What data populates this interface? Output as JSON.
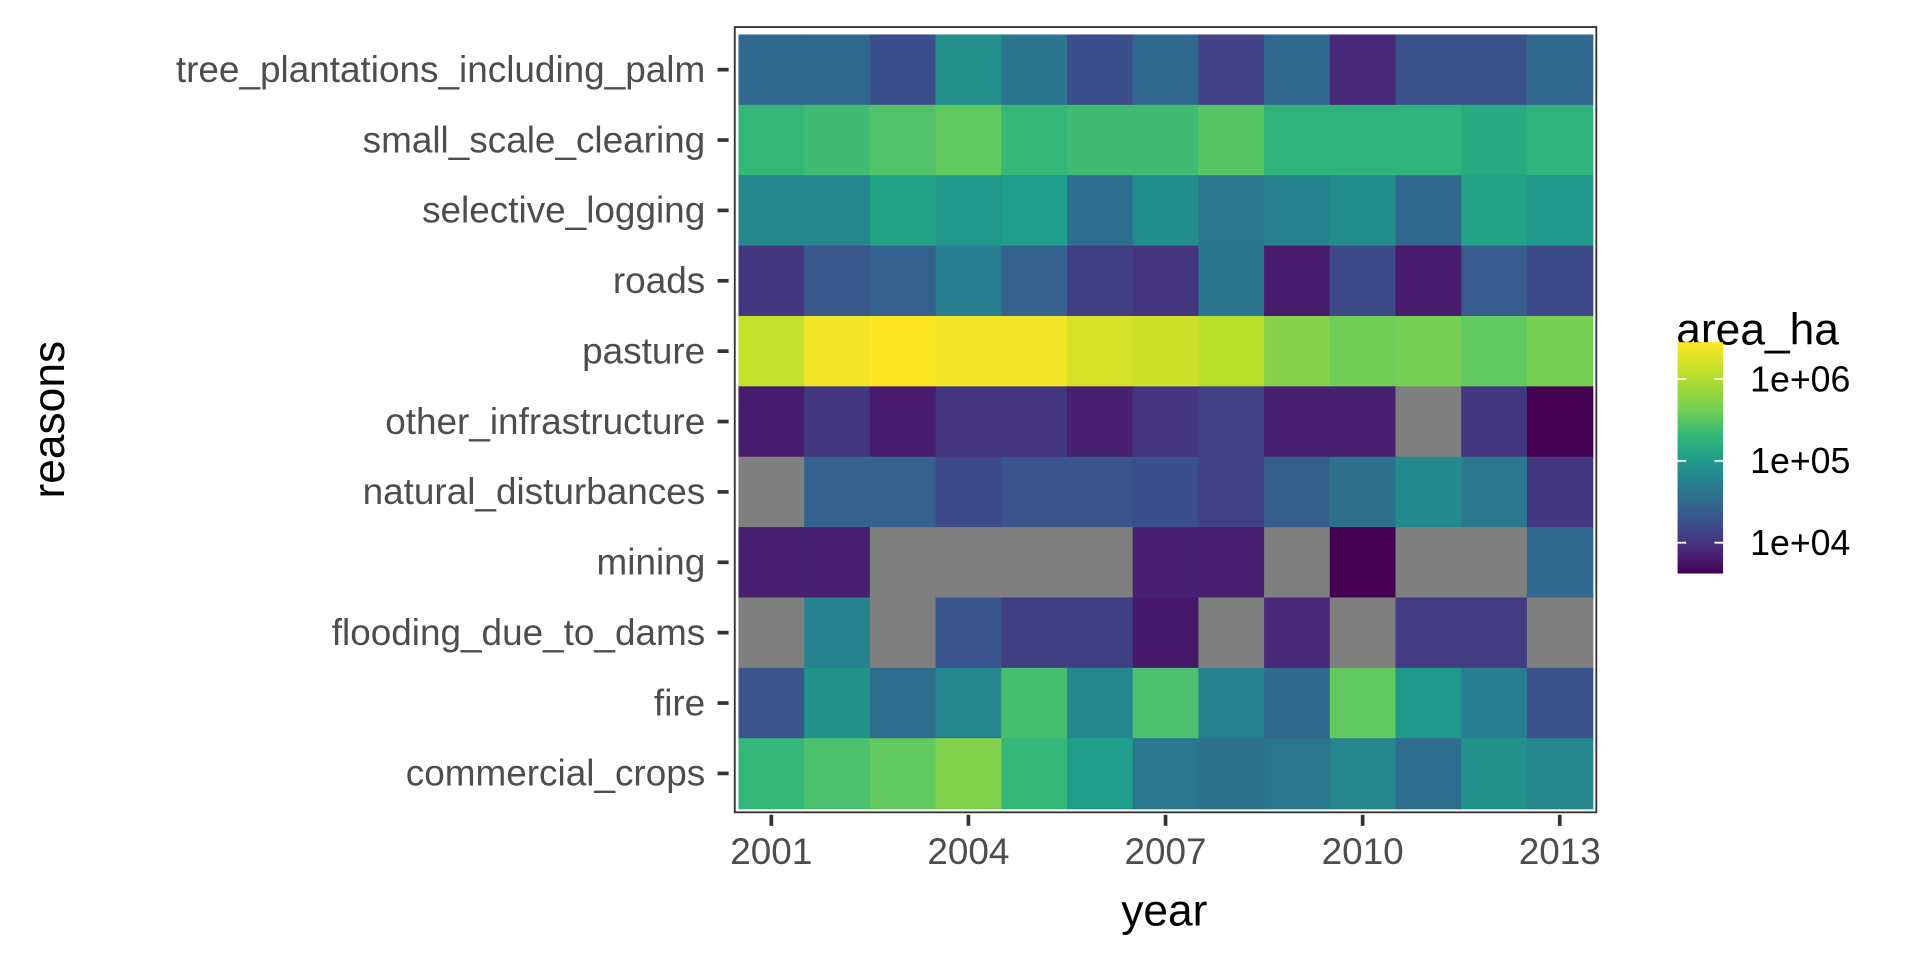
{
  "chart_data": {
    "type": "heatmap",
    "xlabel": "year",
    "ylabel": "reasons",
    "x": [
      2001,
      2002,
      2003,
      2004,
      2005,
      2006,
      2007,
      2008,
      2009,
      2010,
      2011,
      2012,
      2013
    ],
    "x_tick_labels": [
      "2001",
      "2004",
      "2007",
      "2010",
      "2013"
    ],
    "y_categories": [
      "tree_plantations_including_palm",
      "small_scale_clearing",
      "selective_logging",
      "roads",
      "pasture",
      "other_infrastructure",
      "natural_disturbances",
      "mining",
      "flooding_due_to_dams",
      "fire",
      "commercial_crops"
    ],
    "values": [
      [
        29400,
        29400,
        17500,
        78300,
        40800,
        17500,
        29400,
        13500,
        29400,
        8000,
        18700,
        18700,
        29400
      ],
      [
        208000,
        237000,
        288000,
        350000,
        208000,
        237000,
        237000,
        308000,
        182000,
        182000,
        182000,
        150000,
        182000
      ],
      [
        64400,
        64400,
        124000,
        95100,
        108000,
        33600,
        73300,
        43500,
        56500,
        73300,
        29400,
        124000,
        95100
      ],
      [
        11100,
        21300,
        25800,
        49600,
        25800,
        12600,
        10400,
        40800,
        6600,
        15300,
        6600,
        22700,
        15300
      ],
      [
        1290000,
        2470000,
        2820000,
        2470000,
        2470000,
        1670000,
        1470000,
        1130000,
        553000,
        399000,
        455000,
        350000,
        455000
      ],
      [
        6600,
        11100,
        6600,
        10400,
        10400,
        7000,
        10400,
        13500,
        7000,
        7000,
        null,
        11100,
        4200
      ],
      [
        null,
        25800,
        25800,
        15300,
        19900,
        19900,
        17500,
        13500,
        24200,
        35800,
        68700,
        43500,
        11100
      ],
      [
        7000,
        7000,
        null,
        null,
        null,
        null,
        7000,
        7000,
        null,
        4200,
        null,
        null,
        29400
      ],
      [
        null,
        56500,
        null,
        19900,
        12600,
        12600,
        6200,
        null,
        8000,
        null,
        11800,
        11800,
        null
      ],
      [
        19900,
        83600,
        33600,
        64400,
        253000,
        64400,
        270000,
        56500,
        29400,
        350000,
        95100,
        49600,
        18700
      ],
      [
        208000,
        270000,
        350000,
        518000,
        208000,
        108000,
        43500,
        38200,
        43500,
        64400,
        33600,
        83600,
        64400
      ]
    ],
    "scale": "log10",
    "colormap": "viridis",
    "na_color": "#7f7f7f",
    "legend": {
      "title": "area_ha",
      "ticks": [
        "1e+06",
        "1e+05",
        "1e+04"
      ],
      "tick_values": [
        1000000,
        100000,
        10000
      ],
      "placement": "right"
    },
    "color_range": [
      4200,
      2820000
    ]
  }
}
